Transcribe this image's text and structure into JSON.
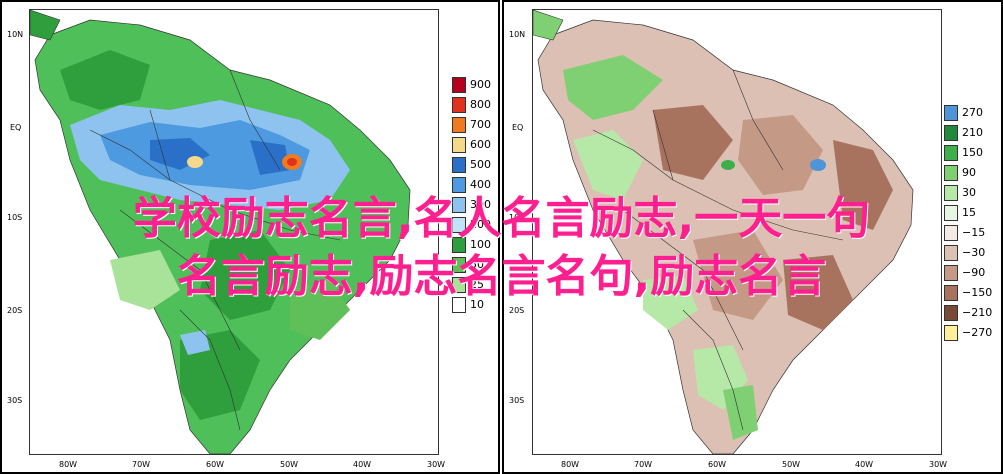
{
  "overlay": {
    "line1": "学校励志名言,名人名言励志,一天一句",
    "line2": "名言励志,励志名言名句,励志名言"
  },
  "left_map": {
    "lat_labels": [
      "10N",
      "EQ",
      "10S",
      "20S",
      "30S"
    ],
    "lon_labels": [
      "80W",
      "70W",
      "60W",
      "50W",
      "40W",
      "30W"
    ],
    "colorbar": {
      "labels": [
        "900",
        "800",
        "700",
        "600",
        "500",
        "400",
        "300",
        "200",
        "100",
        "50",
        "25",
        "10"
      ],
      "colors": [
        "#b4001e",
        "#e1321e",
        "#f07b1e",
        "#f5d98a",
        "#2a70c8",
        "#4d9ae0",
        "#8ec3ef",
        "#bfe3f7",
        "#2f9e3c",
        "#5fc05a",
        "#a9e39a",
        "#ffffff"
      ]
    }
  },
  "right_map": {
    "lat_labels": [
      "10N",
      "EQ",
      "10S",
      "20S",
      "30S"
    ],
    "lon_labels": [
      "80W",
      "70W",
      "60W",
      "50W",
      "40W",
      "30W"
    ],
    "colorbar": {
      "labels": [
        "270",
        "210",
        "150",
        "90",
        "30",
        "15",
        "−15",
        "−30",
        "−90",
        "−150",
        "−210",
        "−270"
      ],
      "colors": [
        "#4e94d8",
        "#1e8a3a",
        "#3fae4c",
        "#7fd073",
        "#b6e8a8",
        "#e6f6e0",
        "#f3eae6",
        "#dcc0b4",
        "#c49a86",
        "#a8735e",
        "#7a4a38",
        "#ffef9a"
      ]
    }
  }
}
